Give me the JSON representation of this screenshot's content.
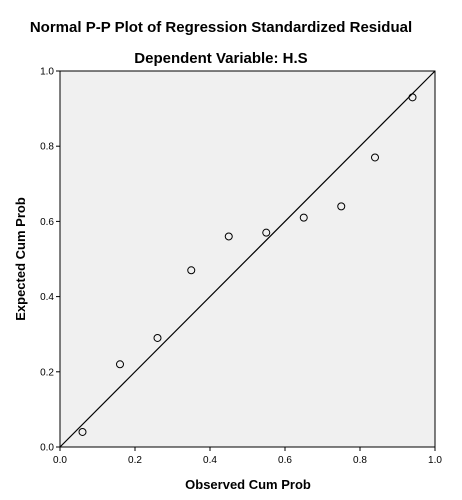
{
  "chart_data": {
    "type": "scatter",
    "title": "Normal P-P Plot of Regression Standardized Residual",
    "subtitle": "Dependent Variable: H.S",
    "xlabel": "Observed Cum Prob",
    "ylabel": "Expected Cum Prob",
    "xlim": [
      0.0,
      1.0
    ],
    "ylim": [
      0.0,
      1.0
    ],
    "x_ticks": [
      "0.0",
      "0.2",
      "0.4",
      "0.6",
      "0.8",
      "1.0"
    ],
    "y_ticks": [
      "0.0",
      "0.2",
      "0.4",
      "0.6",
      "0.8",
      "1.0"
    ],
    "grid": false,
    "reference_line": {
      "from": [
        0.0,
        0.0
      ],
      "to": [
        1.0,
        1.0
      ]
    },
    "points": [
      {
        "x": 0.06,
        "y": 0.04
      },
      {
        "x": 0.16,
        "y": 0.22
      },
      {
        "x": 0.26,
        "y": 0.29
      },
      {
        "x": 0.35,
        "y": 0.47
      },
      {
        "x": 0.45,
        "y": 0.56
      },
      {
        "x": 0.55,
        "y": 0.57
      },
      {
        "x": 0.65,
        "y": 0.61
      },
      {
        "x": 0.75,
        "y": 0.64
      },
      {
        "x": 0.84,
        "y": 0.77
      },
      {
        "x": 0.94,
        "y": 0.93
      }
    ],
    "colors": {
      "plot_background": "#f0f0f0",
      "marker_stroke": "#000000",
      "line": "#000000"
    }
  }
}
